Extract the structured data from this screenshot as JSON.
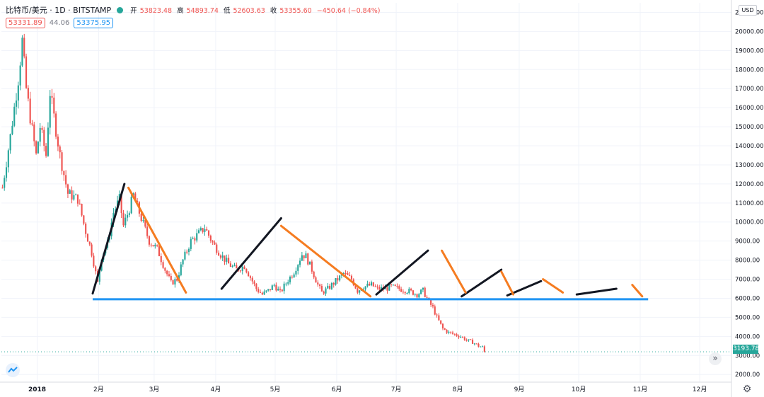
{
  "header": {
    "symbol": "比特币/美元 · 1D · BITSTAMP",
    "ohlc": {
      "open_label": "开",
      "open": "53823.48",
      "high_label": "高",
      "high": "54893.74",
      "low_label": "低",
      "low": "52603.63",
      "close_label": "收",
      "close": "53355.60",
      "change": "−450.64 (−0.84%)"
    },
    "bid": "53331.89",
    "spread": "44.06",
    "ask": "53375.95",
    "currency": "USD"
  },
  "last_price_label": "3193.78",
  "colors": {
    "up": "#26a69a",
    "down": "#ef5350",
    "support": "#2196f3",
    "trend_up": "#131722",
    "trend_down": "#f57c21",
    "grid": "#f0f3fa"
  },
  "icons": [
    "tradingview-logo-icon",
    "scroll-right-icon",
    "gear-icon"
  ],
  "chart_data": {
    "type": "candlestick",
    "title": "",
    "y_ticks": [
      2000,
      3000,
      4000,
      5000,
      6000,
      7000,
      8000,
      9000,
      10000,
      11000,
      12000,
      13000,
      14000,
      15000,
      16000,
      17000,
      18000,
      19000,
      20000,
      21000
    ],
    "y_tick_labels": [
      "2000.00",
      "3000.00",
      "4000.00",
      "5000.00",
      "6000.00",
      "7000.00",
      "8000.00",
      "9000.00",
      "10000.00",
      "11000.00",
      "12000.00",
      "13000.00",
      "14000.00",
      "15000.00",
      "16000.00",
      "17000.00",
      "18000.00",
      "19000.00",
      "20000.00",
      "21000.00"
    ],
    "ylim": [
      1600,
      21500
    ],
    "x_ticks": [
      {
        "label": "2018",
        "day": 18
      },
      {
        "label": "2月",
        "day": 49
      },
      {
        "label": "3月",
        "day": 77
      },
      {
        "label": "4月",
        "day": 108
      },
      {
        "label": "5月",
        "day": 138
      },
      {
        "label": "6月",
        "day": 169
      },
      {
        "label": "7月",
        "day": 199
      },
      {
        "label": "8月",
        "day": 230
      },
      {
        "label": "9月",
        "day": 261
      },
      {
        "label": "10月",
        "day": 291
      },
      {
        "label": "11月",
        "day": 322
      },
      {
        "label": "12月",
        "day": 352
      }
    ],
    "xlim": [
      0,
      368
    ],
    "anchors": [
      [
        0,
        11800
      ],
      [
        4,
        14500
      ],
      [
        8,
        17500
      ],
      [
        10,
        19500
      ],
      [
        12,
        17000
      ],
      [
        14,
        15500
      ],
      [
        17,
        13500
      ],
      [
        19,
        15000
      ],
      [
        22,
        13500
      ],
      [
        24,
        16800
      ],
      [
        26,
        15500
      ],
      [
        29,
        13500
      ],
      [
        33,
        11500
      ],
      [
        38,
        11200
      ],
      [
        42,
        9500
      ],
      [
        45,
        8400
      ],
      [
        48,
        6800
      ],
      [
        50,
        8200
      ],
      [
        53,
        8900
      ],
      [
        56,
        10500
      ],
      [
        59,
        11200
      ],
      [
        61,
        9800
      ],
      [
        64,
        10700
      ],
      [
        66,
        11400
      ],
      [
        70,
        10200
      ],
      [
        74,
        9000
      ],
      [
        78,
        8600
      ],
      [
        82,
        7500
      ],
      [
        85,
        6800
      ],
      [
        88,
        7000
      ],
      [
        91,
        8000
      ],
      [
        95,
        9000
      ],
      [
        99,
        9400
      ],
      [
        102,
        9700
      ],
      [
        106,
        8900
      ],
      [
        110,
        8300
      ],
      [
        114,
        7800
      ],
      [
        118,
        7500
      ],
      [
        122,
        7700
      ],
      [
        126,
        6900
      ],
      [
        128,
        6500
      ],
      [
        131,
        6200
      ],
      [
        134,
        6400
      ],
      [
        137,
        6700
      ],
      [
        140,
        6300
      ],
      [
        143,
        6800
      ],
      [
        147,
        7400
      ],
      [
        151,
        8300
      ],
      [
        153,
        8200
      ],
      [
        156,
        7500
      ],
      [
        159,
        6700
      ],
      [
        161,
        6300
      ],
      [
        164,
        6500
      ],
      [
        168,
        6900
      ],
      [
        172,
        7300
      ],
      [
        176,
        7000
      ],
      [
        179,
        6400
      ],
      [
        182,
        6600
      ],
      [
        186,
        6700
      ],
      [
        189,
        6500
      ],
      [
        193,
        6500
      ],
      [
        196,
        6600
      ],
      [
        200,
        6500
      ],
      [
        204,
        6400
      ],
      [
        207,
        6300
      ],
      [
        209,
        6200
      ],
      [
        212,
        6400
      ],
      [
        215,
        5800
      ],
      [
        217,
        5500
      ],
      [
        219,
        5000
      ],
      [
        222,
        4400
      ],
      [
        225,
        4200
      ],
      [
        228,
        4100
      ],
      [
        231,
        4000
      ],
      [
        234,
        3800
      ],
      [
        237,
        3700
      ],
      [
        240,
        3500
      ],
      [
        243,
        3400
      ]
    ],
    "last_price": 3193.78,
    "support_line": {
      "value": 5950,
      "from_day": 46,
      "to_day": 326
    },
    "trend_lines_up": [
      {
        "from": [
          46,
          6250
        ],
        "to": [
          62,
          12000
        ]
      },
      {
        "from": [
          111,
          6500
        ],
        "to": [
          141,
          10200
        ]
      },
      {
        "from": [
          189,
          6200
        ],
        "to": [
          215,
          8500
        ]
      },
      {
        "from": [
          232,
          6100
        ],
        "to": [
          252,
          7500
        ]
      },
      {
        "from": [
          255,
          6150
        ],
        "to": [
          272,
          6900
        ]
      },
      {
        "from": [
          290,
          6200
        ],
        "to": [
          310,
          6500
        ]
      }
    ],
    "trend_lines_down": [
      {
        "from": [
          64,
          11800
        ],
        "to": [
          93,
          6300
        ]
      },
      {
        "from": [
          141,
          9800
        ],
        "to": [
          186,
          6100
        ]
      },
      {
        "from": [
          222,
          8500
        ],
        "to": [
          234,
          6300
        ]
      },
      {
        "from": [
          252,
          7400
        ],
        "to": [
          258,
          6200
        ]
      },
      {
        "from": [
          273,
          7000
        ],
        "to": [
          283,
          6300
        ]
      },
      {
        "from": [
          318,
          6700
        ],
        "to": [
          323,
          6100
        ]
      }
    ]
  }
}
